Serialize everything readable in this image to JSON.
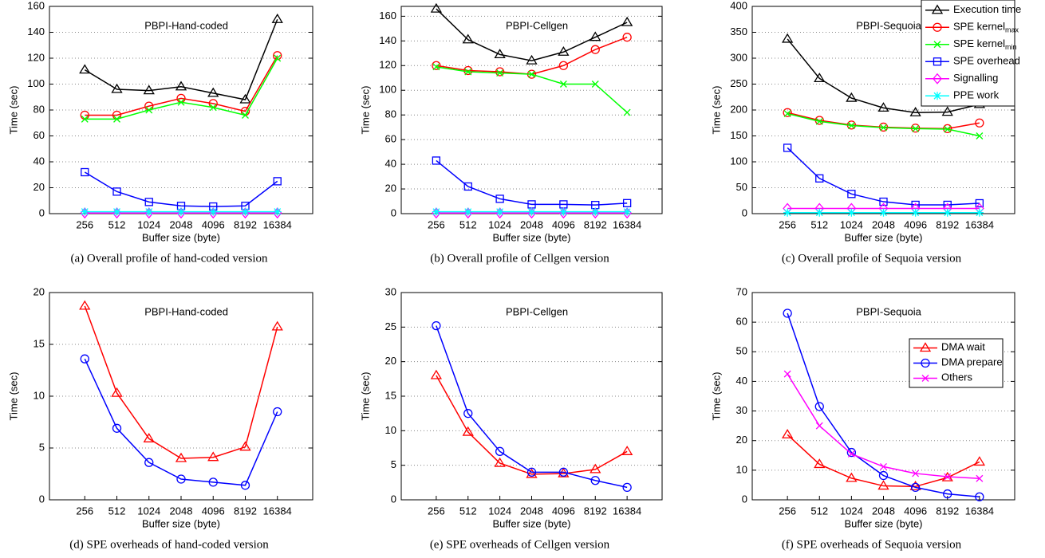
{
  "chart_data": [
    {
      "type": "line",
      "title": "PBPI-Hand-coded",
      "caption": "(a)  Overall profile of hand-coded version",
      "x_label": "Buffer size (byte)",
      "y_label": "Time (sec)",
      "categories": [
        256,
        512,
        1024,
        2048,
        4096,
        8192,
        16384
      ],
      "ylim": [
        0,
        160
      ],
      "yticks": [
        0,
        20,
        40,
        60,
        80,
        100,
        120,
        140,
        160
      ],
      "grid": true,
      "series": [
        {
          "color": "#000000",
          "marker": "triangle",
          "values": [
            111,
            96,
            95,
            98,
            93,
            88,
            150
          ]
        },
        {
          "color": "#ff0000",
          "marker": "circle",
          "values": [
            76,
            76,
            83,
            89,
            85,
            79,
            122
          ]
        },
        {
          "color": "#00ff00",
          "marker": "x",
          "values": [
            73,
            73,
            80,
            86,
            82,
            76,
            120
          ]
        },
        {
          "color": "#0000ff",
          "marker": "square",
          "values": [
            32,
            17,
            9,
            6,
            5.5,
            6,
            25
          ]
        },
        {
          "color": "#ff00ff",
          "marker": "diamond",
          "values": [
            0.5,
            0.5,
            0.5,
            0.5,
            0.5,
            0.5,
            0.5
          ]
        },
        {
          "color": "#00ffff",
          "marker": "asterisk",
          "values": [
            1.5,
            1.5,
            1.5,
            1.5,
            1.5,
            1.5,
            1.5
          ]
        }
      ]
    },
    {
      "type": "line",
      "title": "PBPI-Cellgen",
      "caption": "(b)  Overall profile of Cellgen version",
      "x_label": "Buffer size (byte)",
      "y_label": "Time (sec)",
      "categories": [
        256,
        512,
        1024,
        2048,
        4096,
        8192,
        16384
      ],
      "ylim": [
        0,
        168
      ],
      "yticks": [
        0,
        20,
        40,
        60,
        80,
        100,
        120,
        140,
        160
      ],
      "grid": true,
      "series": [
        {
          "color": "#000000",
          "marker": "triangle",
          "values": [
            166,
            141,
            129,
            124,
            131,
            143,
            155
          ]
        },
        {
          "color": "#ff0000",
          "marker": "circle",
          "values": [
            120,
            116,
            115,
            113,
            120,
            133,
            143
          ]
        },
        {
          "color": "#00ff00",
          "marker": "x",
          "values": [
            119,
            115,
            114,
            113,
            105,
            105,
            82
          ]
        },
        {
          "color": "#0000ff",
          "marker": "square",
          "values": [
            43,
            22,
            12,
            7.5,
            7.5,
            7,
            8.5
          ]
        },
        {
          "color": "#ff00ff",
          "marker": "diamond",
          "values": [
            0.5,
            0.5,
            0.5,
            0.5,
            0.5,
            0.5,
            0.5
          ]
        },
        {
          "color": "#00ffff",
          "marker": "asterisk",
          "values": [
            1.5,
            1.5,
            1.5,
            1.5,
            1.5,
            1.5,
            1.5
          ]
        }
      ]
    },
    {
      "type": "line",
      "title": "PBPI-Sequoia",
      "caption": "(c)  Overall profile of Sequoia version",
      "x_label": "Buffer size (byte)",
      "y_label": "Time (sec)",
      "categories": [
        256,
        512,
        1024,
        2048,
        4096,
        8192,
        16384
      ],
      "ylim": [
        0,
        400
      ],
      "yticks": [
        0,
        50,
        100,
        150,
        200,
        250,
        300,
        350,
        400
      ],
      "grid": true,
      "legend": "upper right",
      "series": [
        {
          "name": "Execution time",
          "color": "#000000",
          "marker": "triangle",
          "values": [
            337,
            261,
            223,
            204,
            195,
            196,
            211
          ]
        },
        {
          "name": "SPE kernel",
          "name_sub": "max",
          "color": "#ff0000",
          "marker": "circle",
          "values": [
            195,
            180,
            171,
            167,
            165,
            164,
            175
          ]
        },
        {
          "name": "SPE kernel",
          "name_sub": "min",
          "color": "#00ff00",
          "marker": "x",
          "values": [
            193,
            178,
            170,
            166,
            164,
            163,
            150
          ]
        },
        {
          "name": "SPE overhead",
          "color": "#0000ff",
          "marker": "square",
          "values": [
            127,
            68,
            38,
            23,
            17,
            17,
            20
          ]
        },
        {
          "name": "Signalling",
          "color": "#ff00ff",
          "marker": "diamond",
          "values": [
            10,
            10,
            10,
            10,
            10,
            10,
            10
          ]
        },
        {
          "name": "PPE work",
          "color": "#00ffff",
          "marker": "asterisk",
          "values": [
            2,
            2,
            2,
            2,
            2,
            2,
            2
          ]
        }
      ]
    },
    {
      "type": "line",
      "title": "PBPI-Hand-coded",
      "caption": "(d)  SPE overheads of hand-coded version",
      "x_label": "Buffer size (byte)",
      "y_label": "Time (sec)",
      "categories": [
        256,
        512,
        1024,
        2048,
        4096,
        8192,
        16384
      ],
      "ylim": [
        0,
        20
      ],
      "yticks": [
        0,
        5,
        10,
        15,
        20
      ],
      "grid": true,
      "series": [
        {
          "color": "#ff0000",
          "marker": "triangle",
          "values": [
            18.7,
            10.3,
            5.9,
            4.0,
            4.1,
            5.1,
            16.7
          ]
        },
        {
          "color": "#0000ff",
          "marker": "circle",
          "values": [
            13.6,
            6.9,
            3.6,
            2.0,
            1.7,
            1.4,
            8.5
          ]
        }
      ]
    },
    {
      "type": "line",
      "title": "PBPI-Cellgen",
      "caption": "(e)  SPE overheads of Cellgen version",
      "x_label": "Buffer size (byte)",
      "y_label": "Time (sec)",
      "categories": [
        256,
        512,
        1024,
        2048,
        4096,
        8192,
        16384
      ],
      "ylim": [
        0,
        30
      ],
      "yticks": [
        0,
        5,
        10,
        15,
        20,
        25,
        30
      ],
      "grid": true,
      "series": [
        {
          "color": "#ff0000",
          "marker": "triangle",
          "values": [
            18,
            9.8,
            5.3,
            3.7,
            3.8,
            4.4,
            7.0
          ]
        },
        {
          "color": "#0000ff",
          "marker": "circle",
          "values": [
            25.2,
            12.5,
            7.0,
            4.0,
            4.0,
            2.8,
            1.8
          ]
        }
      ]
    },
    {
      "type": "line",
      "title": "PBPI-Sequoia",
      "caption": "(f)  SPE overheads of Sequoia version",
      "x_label": "Buffer size (byte)",
      "y_label": "Time (sec)",
      "categories": [
        256,
        512,
        1024,
        2048,
        4096,
        8192,
        16384
      ],
      "ylim": [
        0,
        70
      ],
      "yticks": [
        0,
        10,
        20,
        30,
        40,
        50,
        60,
        70
      ],
      "grid": true,
      "legend": "right",
      "series": [
        {
          "name": "DMA wait",
          "color": "#ff0000",
          "marker": "triangle",
          "values": [
            22,
            12,
            7.3,
            4.7,
            4.5,
            7.5,
            12.8
          ]
        },
        {
          "name": "DMA prepare",
          "color": "#0000ff",
          "marker": "circle",
          "values": [
            63,
            31.5,
            16,
            8.2,
            4.2,
            2,
            1
          ]
        },
        {
          "name": "Others",
          "color": "#ff00ff",
          "marker": "x",
          "values": [
            42.5,
            25,
            15.5,
            11.2,
            8.9,
            7.8,
            7.2
          ]
        }
      ]
    }
  ]
}
